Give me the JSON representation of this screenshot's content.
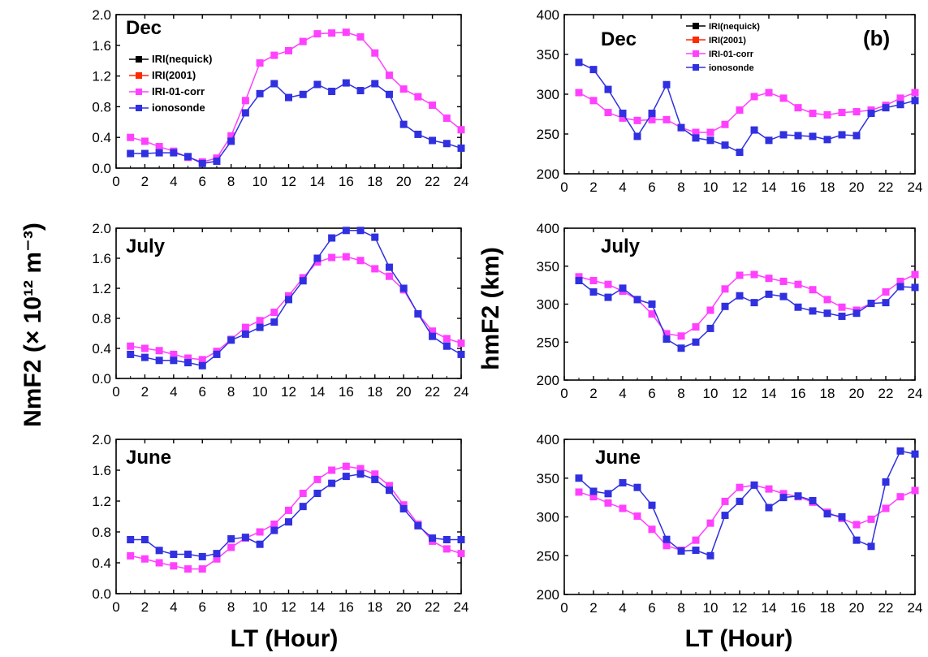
{
  "figure": {
    "left_ylabel": "NmF2 (× 10¹² m⁻³)",
    "right_ylabel": "hmF2 (km)",
    "xlabel": "LT (Hour)",
    "panel_tag": "(b)"
  },
  "colors": {
    "IRI(nequick)": "#000000",
    "IRI(2001)": "#ff2a00",
    "IRI-01-corr": "#ff40ff",
    "ionosonde": "#3030e0"
  },
  "chart_data": [
    {
      "type": "line",
      "month": "Dec",
      "ylabel": "NmF2 (× 10¹² m⁻³)",
      "xlim": [
        0,
        24
      ],
      "ylim": [
        0,
        2.0
      ],
      "xticks": [
        "0",
        "2",
        "4",
        "6",
        "8",
        "10",
        "12",
        "14",
        "16",
        "18",
        "20",
        "22",
        "24"
      ],
      "yticks": [
        "0.0",
        "0.4",
        "0.8",
        "1.2",
        "1.6",
        "2.0"
      ],
      "legend": [
        "IRI(nequick)",
        "IRI(2001)",
        "IRI-01-corr",
        "ionosonde"
      ],
      "x": [
        1,
        2,
        3,
        4,
        5,
        6,
        7,
        8,
        9,
        10,
        11,
        12,
        13,
        14,
        15,
        16,
        17,
        18,
        19,
        20,
        21,
        22,
        23,
        24
      ],
      "series": [
        {
          "name": "IRI-01-corr",
          "values": [
            0.4,
            0.35,
            0.28,
            0.22,
            0.14,
            0.08,
            0.13,
            0.42,
            0.88,
            1.37,
            1.47,
            1.53,
            1.65,
            1.75,
            1.76,
            1.77,
            1.71,
            1.5,
            1.21,
            1.03,
            0.93,
            0.82,
            0.65,
            0.5
          ]
        },
        {
          "name": "ionosonde",
          "values": [
            0.19,
            0.19,
            0.2,
            0.2,
            0.15,
            0.06,
            0.09,
            0.35,
            0.72,
            0.97,
            1.1,
            0.92,
            0.96,
            1.09,
            1.0,
            1.11,
            1.01,
            1.1,
            0.96,
            0.57,
            0.44,
            0.36,
            0.32,
            0.26
          ]
        }
      ]
    },
    {
      "type": "line",
      "month": "Dec",
      "ylabel": "hmF2 (km)",
      "xlim": [
        0,
        24
      ],
      "ylim": [
        200,
        400
      ],
      "xticks": [
        "0",
        "2",
        "4",
        "6",
        "8",
        "10",
        "12",
        "14",
        "16",
        "18",
        "20",
        "22",
        "24"
      ],
      "yticks": [
        "200",
        "250",
        "300",
        "350",
        "400"
      ],
      "legend": [
        "IRI(nequick)",
        "IRI(2001)",
        "IRI-01-corr",
        "ionosonde"
      ],
      "x": [
        1,
        2,
        3,
        4,
        5,
        6,
        7,
        8,
        9,
        10,
        11,
        12,
        13,
        14,
        15,
        16,
        17,
        18,
        19,
        20,
        21,
        22,
        23,
        24
      ],
      "series": [
        {
          "name": "IRI-01-corr",
          "values": [
            302,
            292,
            277,
            270,
            267,
            268,
            268,
            258,
            252,
            252,
            262,
            280,
            297,
            302,
            295,
            283,
            276,
            274,
            277,
            278,
            280,
            286,
            295,
            302
          ]
        },
        {
          "name": "ionosonde",
          "values": [
            340,
            331,
            306,
            276,
            247,
            276,
            312,
            258,
            245,
            242,
            236,
            227,
            255,
            242,
            249,
            248,
            247,
            243,
            249,
            248,
            276,
            283,
            287,
            292
          ]
        }
      ]
    },
    {
      "type": "line",
      "month": "July",
      "ylabel": "NmF2 (× 10¹² m⁻³)",
      "xlim": [
        0,
        24
      ],
      "ylim": [
        0,
        2.0
      ],
      "xticks": [
        "0",
        "2",
        "4",
        "6",
        "8",
        "10",
        "12",
        "14",
        "16",
        "18",
        "20",
        "22",
        "24"
      ],
      "yticks": [
        "0.0",
        "0.4",
        "0.8",
        "1.2",
        "1.6",
        "2.0"
      ],
      "x": [
        1,
        2,
        3,
        4,
        5,
        6,
        7,
        8,
        9,
        10,
        11,
        12,
        13,
        14,
        15,
        16,
        17,
        18,
        19,
        20,
        21,
        22,
        23,
        24
      ],
      "series": [
        {
          "name": "IRI-01-corr",
          "values": [
            0.43,
            0.4,
            0.37,
            0.32,
            0.27,
            0.25,
            0.36,
            0.52,
            0.68,
            0.77,
            0.88,
            1.1,
            1.34,
            1.55,
            1.61,
            1.62,
            1.57,
            1.46,
            1.36,
            1.18,
            0.86,
            0.63,
            0.53,
            0.47
          ]
        },
        {
          "name": "ionosonde",
          "values": [
            0.32,
            0.28,
            0.24,
            0.24,
            0.21,
            0.17,
            0.32,
            0.51,
            0.59,
            0.68,
            0.75,
            1.05,
            1.3,
            1.6,
            1.87,
            1.97,
            1.97,
            1.88,
            1.48,
            1.2,
            0.86,
            0.56,
            0.43,
            0.32
          ]
        }
      ]
    },
    {
      "type": "line",
      "month": "July",
      "ylabel": "hmF2 (km)",
      "xlim": [
        0,
        24
      ],
      "ylim": [
        200,
        400
      ],
      "xticks": [
        "0",
        "2",
        "4",
        "6",
        "8",
        "10",
        "12",
        "14",
        "16",
        "18",
        "20",
        "22",
        "24"
      ],
      "yticks": [
        "200",
        "250",
        "300",
        "350",
        "400"
      ],
      "x": [
        1,
        2,
        3,
        4,
        5,
        6,
        7,
        8,
        9,
        10,
        11,
        12,
        13,
        14,
        15,
        16,
        17,
        18,
        19,
        20,
        21,
        22,
        23,
        24
      ],
      "series": [
        {
          "name": "IRI-01-corr",
          "values": [
            336,
            331,
            326,
            317,
            306,
            287,
            261,
            258,
            270,
            292,
            320,
            338,
            339,
            334,
            330,
            326,
            319,
            306,
            296,
            292,
            301,
            316,
            330,
            339
          ]
        },
        {
          "name": "ionosonde",
          "values": [
            331,
            316,
            309,
            321,
            306,
            300,
            254,
            242,
            250,
            268,
            297,
            311,
            302,
            313,
            310,
            296,
            291,
            288,
            284,
            288,
            301,
            302,
            323,
            322
          ]
        }
      ]
    },
    {
      "type": "line",
      "month": "June",
      "ylabel": "NmF2 (× 10¹² m⁻³)",
      "xlim": [
        0,
        24
      ],
      "ylim": [
        0,
        2.0
      ],
      "xticks": [
        "0",
        "2",
        "4",
        "6",
        "8",
        "10",
        "12",
        "14",
        "16",
        "18",
        "20",
        "22",
        "24"
      ],
      "yticks": [
        "0.0",
        "0.4",
        "0.8",
        "1.2",
        "1.6",
        "2.0"
      ],
      "x": [
        1,
        2,
        3,
        4,
        5,
        6,
        7,
        8,
        9,
        10,
        11,
        12,
        13,
        14,
        15,
        16,
        17,
        18,
        19,
        20,
        21,
        22,
        23,
        24
      ],
      "series": [
        {
          "name": "IRI-01-corr",
          "values": [
            0.49,
            0.45,
            0.4,
            0.36,
            0.32,
            0.32,
            0.45,
            0.6,
            0.72,
            0.8,
            0.9,
            1.08,
            1.3,
            1.48,
            1.6,
            1.65,
            1.62,
            1.55,
            1.4,
            1.15,
            0.9,
            0.68,
            0.58,
            0.52
          ]
        },
        {
          "name": "ionosonde",
          "values": [
            0.7,
            0.7,
            0.56,
            0.51,
            0.51,
            0.48,
            0.52,
            0.71,
            0.73,
            0.64,
            0.82,
            0.93,
            1.13,
            1.3,
            1.43,
            1.52,
            1.55,
            1.48,
            1.34,
            1.1,
            0.88,
            0.72,
            0.7,
            0.7
          ]
        }
      ]
    },
    {
      "type": "line",
      "month": "June",
      "ylabel": "hmF2 (km)",
      "xlim": [
        0,
        24
      ],
      "ylim": [
        200,
        400
      ],
      "xticks": [
        "0",
        "2",
        "4",
        "6",
        "8",
        "10",
        "12",
        "14",
        "16",
        "18",
        "20",
        "22",
        "24"
      ],
      "yticks": [
        "200",
        "250",
        "300",
        "350",
        "400"
      ],
      "x": [
        1,
        2,
        3,
        4,
        5,
        6,
        7,
        8,
        9,
        10,
        11,
        12,
        13,
        14,
        15,
        16,
        17,
        18,
        19,
        20,
        21,
        22,
        23,
        24
      ],
      "series": [
        {
          "name": "IRI-01-corr",
          "values": [
            332,
            326,
            318,
            311,
            301,
            284,
            263,
            257,
            270,
            292,
            320,
            338,
            341,
            336,
            330,
            326,
            319,
            306,
            298,
            290,
            297,
            311,
            326,
            334
          ]
        },
        {
          "name": "ionosonde",
          "values": [
            350,
            333,
            330,
            344,
            338,
            315,
            271,
            256,
            257,
            250,
            302,
            320,
            341,
            312,
            325,
            327,
            321,
            304,
            300,
            270,
            262,
            345,
            385,
            381
          ]
        }
      ]
    }
  ]
}
